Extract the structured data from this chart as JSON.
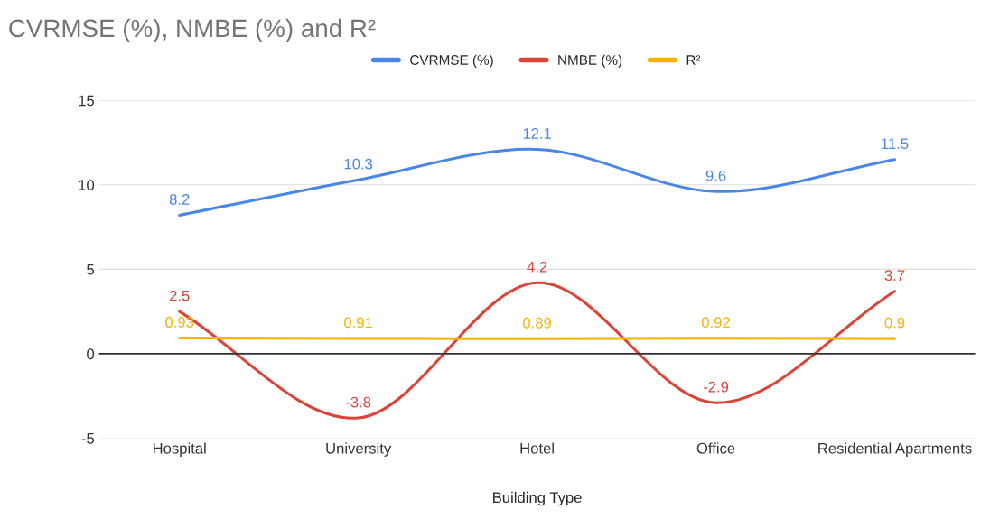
{
  "chart_data": {
    "type": "line",
    "title": "CVRMSE (%), NMBE (%) and R²",
    "xlabel": "Building Type",
    "categories": [
      "Hospital",
      "University",
      "Hotel",
      "Office",
      "Residential Apartments"
    ],
    "series": [
      {
        "name": "CVRMSE (%)",
        "color": "#4a86e8",
        "values": [
          8.2,
          10.3,
          12.1,
          9.6,
          11.5
        ]
      },
      {
        "name": "NMBE (%)",
        "color": "#db4437",
        "values": [
          2.5,
          -3.8,
          4.2,
          -2.9,
          3.7
        ]
      },
      {
        "name": "R²",
        "color": "#f4b400",
        "values": [
          0.93,
          0.91,
          0.89,
          0.92,
          0.9
        ]
      }
    ],
    "ylim": [
      -5,
      15
    ],
    "yticks": [
      -5,
      0,
      5,
      10,
      15
    ],
    "grid": "y",
    "legend": "top",
    "data_labels": true,
    "marker": "none",
    "line_style": "solid",
    "ref_lines": [
      {
        "axis": "y",
        "value": 0,
        "color": "#333333"
      }
    ]
  }
}
